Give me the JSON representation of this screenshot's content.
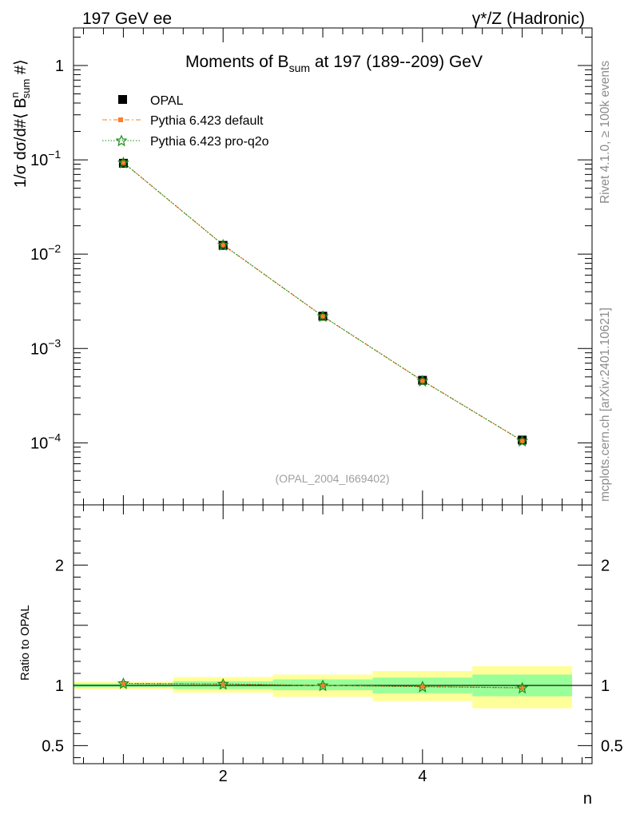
{
  "header": {
    "left": "197 GeV ee",
    "right": "γ*/Z (Hadronic)"
  },
  "side_labels": {
    "rivet": "Rivet 4.1.0, ≥ 100k events",
    "mcplots": "mcplots.cern.ch [arXiv:2401.10621]"
  },
  "chart_data": [
    {
      "type": "line",
      "title": "Moments of B_sum at 197 (189--209) GeV",
      "title_parts": {
        "pre": "Moments of B",
        "sub": "sum",
        "post": " at 197 (189--209) GeV"
      },
      "ylabel": "1/σ  dσ/d#⟨ B^n_sum #⟩",
      "ylabel_parts": {
        "a": "1/σ  dσ/d#⟨ B",
        "sup": "n",
        "sub": "sum",
        "b": " #⟩"
      },
      "yscale": "log",
      "ylim": [
        2.2e-05,
        2.5
      ],
      "xlim": [
        0.5,
        5.7
      ],
      "yticks": [
        {
          "value": 1,
          "label": "1"
        },
        {
          "value": 0.1,
          "label": "10",
          "exp": "−1"
        },
        {
          "value": 0.01,
          "label": "10",
          "exp": "−2"
        },
        {
          "value": 0.001,
          "label": "10",
          "exp": "−3"
        },
        {
          "value": 0.0001,
          "label": "10",
          "exp": "−4"
        }
      ],
      "legend": {
        "placement": "top-left",
        "entries": [
          "OPAL",
          "Pythia 6.423 default",
          "Pythia 6.423 pro-q2o"
        ]
      },
      "watermark": "(OPAL_2004_I669402)",
      "x": [
        1,
        2,
        3,
        4,
        5
      ],
      "series": [
        {
          "name": "OPAL",
          "marker": "square",
          "color": "#000000",
          "values": [
            0.092,
            0.0124,
            0.0022,
            0.00046,
            0.000107
          ]
        },
        {
          "name": "Pythia 6.423 default",
          "marker": "square-small",
          "color": "#ff7f2a",
          "values": [
            0.0935,
            0.01255,
            0.0022,
            0.000455,
            0.000105
          ]
        },
        {
          "name": "Pythia 6.423 pro-q2o",
          "marker": "star",
          "color": "#1a8c1a",
          "values": [
            0.0935,
            0.01255,
            0.0022,
            0.000455,
            0.000105
          ]
        }
      ]
    },
    {
      "type": "line",
      "ylabel": "Ratio to OPAL",
      "xlabel": "n",
      "ylim": [
        0.35,
        2.5
      ],
      "xlim": [
        0.5,
        5.7
      ],
      "yticks": [
        {
          "value": 2,
          "label": "2"
        },
        {
          "value": 1,
          "label": "1"
        },
        {
          "value": 0.5,
          "label": "0.5"
        }
      ],
      "xticks": [
        {
          "value": 2,
          "label": "2"
        },
        {
          "value": 4,
          "label": "4"
        }
      ],
      "bins": [
        {
          "lo": 0.5,
          "hi": 1.5,
          "green": [
            0.985,
            1.015
          ],
          "yellow": [
            0.968,
            1.032
          ]
        },
        {
          "lo": 1.5,
          "hi": 2.5,
          "green": [
            0.97,
            1.035
          ],
          "yellow": [
            0.94,
            1.07
          ]
        },
        {
          "lo": 2.5,
          "hi": 3.5,
          "green": [
            0.96,
            1.05
          ],
          "yellow": [
            0.905,
            1.09
          ]
        },
        {
          "lo": 3.5,
          "hi": 4.5,
          "green": [
            0.935,
            1.065
          ],
          "yellow": [
            0.87,
            1.12
          ]
        },
        {
          "lo": 4.5,
          "hi": 5.5,
          "green": [
            0.91,
            1.09
          ],
          "yellow": [
            0.81,
            1.16
          ]
        }
      ],
      "x": [
        1,
        2,
        3,
        4,
        5
      ],
      "series": [
        {
          "name": "Pythia 6.423 default",
          "color": "#ff7f2a",
          "values": [
            1.017,
            1.012,
            1.0,
            0.99,
            0.98
          ]
        },
        {
          "name": "Pythia 6.423 pro-q2o",
          "color": "#1a8c1a",
          "values": [
            1.017,
            1.012,
            1.0,
            0.99,
            0.98
          ]
        }
      ]
    }
  ]
}
